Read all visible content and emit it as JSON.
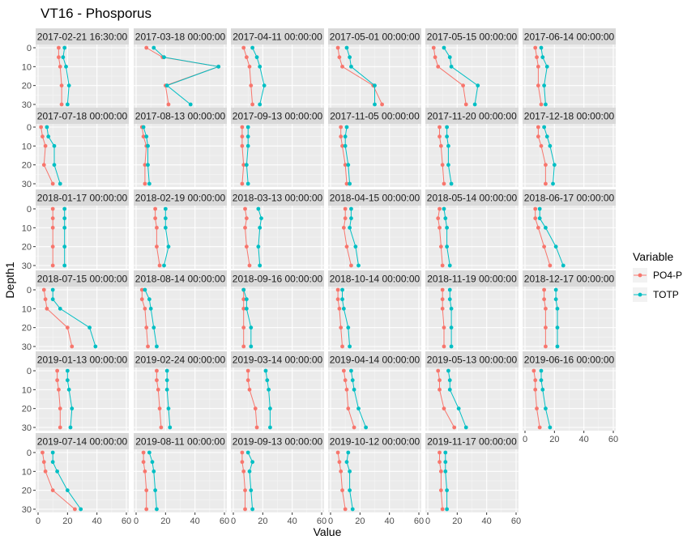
{
  "chart_data": {
    "type": "line",
    "title": "VT16  -  Phosporus",
    "xlabel": "Value",
    "ylabel": "Depth1",
    "xlim": [
      0,
      60
    ],
    "ylim": [
      0,
      30
    ],
    "y_reversed": true,
    "x_ticks": [
      "0",
      "20",
      "40",
      "60"
    ],
    "y_ticks": [
      "0",
      "10",
      "20",
      "30"
    ],
    "grid": true,
    "legend": {
      "title": "Variable",
      "position": "right"
    },
    "series": [
      {
        "name": "PO4-P",
        "color": "#F8766D"
      },
      {
        "name": "TOTP",
        "color": "#00BFC4"
      }
    ],
    "depths": [
      0,
      5,
      10,
      20,
      30
    ],
    "panels": [
      {
        "label": "2017-02-21 16:30:00",
        "po4p": [
          14,
          14,
          15,
          16,
          16
        ],
        "totp": [
          18,
          17,
          19,
          21,
          20
        ]
      },
      {
        "label": "2017-03-18 00:00:00",
        "po4p": [
          7,
          18,
          56,
          20,
          22
        ],
        "totp": [
          12,
          19,
          56,
          21,
          37
        ]
      },
      {
        "label": "2017-04-11 00:00:00",
        "po4p": [
          7,
          9,
          11,
          12,
          13
        ],
        "totp": [
          13,
          16,
          18,
          21,
          18
        ]
      },
      {
        "label": "2017-05-01 00:00:00",
        "po4p": [
          5,
          6,
          8,
          29,
          35
        ],
        "totp": [
          11,
          13,
          14,
          30,
          30
        ]
      },
      {
        "label": "2017-05-15 00:00:00",
        "po4p": [
          4,
          5,
          7,
          24,
          26
        ],
        "totp": [
          11,
          15,
          16,
          34,
          32
        ]
      },
      {
        "label": "2017-06-14 00:00:00",
        "po4p": [
          7,
          8,
          9,
          9,
          11
        ],
        "totp": [
          11,
          12,
          15,
          13,
          14
        ]
      },
      {
        "label": "2017-07-18 00:00:00",
        "po4p": [
          2,
          3,
          5,
          4,
          10
        ],
        "totp": [
          6,
          7,
          11,
          11,
          15
        ]
      },
      {
        "label": "2017-08-13 00:00:00",
        "po4p": [
          4,
          5,
          7,
          6,
          6
        ],
        "totp": [
          5,
          7,
          8,
          8,
          9
        ]
      },
      {
        "label": "2017-09-13 00:00:00",
        "po4p": [
          6,
          6,
          6,
          7,
          6
        ],
        "totp": [
          10,
          10,
          10,
          9,
          10
        ]
      },
      {
        "label": "2017-11-05 00:00:00",
        "po4p": [
          7,
          7,
          8,
          10,
          11
        ],
        "totp": [
          11,
          10,
          10,
          12,
          13
        ]
      },
      {
        "label": "2017-11-20 00:00:00",
        "po4p": [
          8,
          8,
          9,
          10,
          11
        ],
        "totp": [
          13,
          13,
          14,
          14,
          16
        ]
      },
      {
        "label": "2017-12-18 00:00:00",
        "po4p": [
          9,
          9,
          11,
          14,
          14
        ],
        "totp": [
          13,
          15,
          17,
          20,
          19
        ]
      },
      {
        "label": "2018-01-17 00:00:00",
        "po4p": [
          10,
          10,
          10,
          10,
          10
        ],
        "totp": [
          18,
          18,
          18,
          18,
          18
        ]
      },
      {
        "label": "2018-02-19 00:00:00",
        "po4p": [
          13,
          13,
          14,
          14,
          16
        ],
        "totp": [
          20,
          20,
          20,
          22,
          19
        ]
      },
      {
        "label": "2018-03-13 00:00:00",
        "po4p": [
          8,
          9,
          8,
          9,
          11
        ],
        "totp": [
          17,
          19,
          18,
          17,
          18
        ]
      },
      {
        "label": "2018-04-15 00:00:00",
        "po4p": [
          10,
          10,
          9,
          11,
          14
        ],
        "totp": [
          14,
          14,
          13,
          17,
          19
        ]
      },
      {
        "label": "2018-05-14 00:00:00",
        "po4p": [
          8,
          7,
          8,
          9,
          10
        ],
        "totp": [
          11,
          12,
          13,
          13,
          15
        ]
      },
      {
        "label": "2018-06-17 00:00:00",
        "po4p": [
          7,
          7,
          9,
          13,
          17
        ],
        "totp": [
          10,
          10,
          14,
          21,
          26
        ]
      },
      {
        "label": "2018-07-15 00:00:00",
        "po4p": [
          4,
          5,
          6,
          20,
          23
        ],
        "totp": [
          10,
          10,
          15,
          35,
          39
        ]
      },
      {
        "label": "2018-08-14 00:00:00",
        "po4p": [
          4,
          4,
          6,
          7,
          8
        ],
        "totp": [
          6,
          9,
          10,
          12,
          14
        ]
      },
      {
        "label": "2018-09-16 00:00:00",
        "po4p": [
          7,
          7,
          7,
          7,
          7
        ],
        "totp": [
          7,
          9,
          9,
          12,
          12
        ]
      },
      {
        "label": "2018-10-14 00:00:00",
        "po4p": [
          5,
          5,
          6,
          7,
          8
        ],
        "totp": [
          8,
          8,
          9,
          12,
          13
        ]
      },
      {
        "label": "2018-11-19 00:00:00",
        "po4p": [
          10,
          10,
          10,
          11,
          11
        ],
        "totp": [
          15,
          15,
          16,
          16,
          16
        ]
      },
      {
        "label": "2018-12-17 00:00:00",
        "po4p": [
          13,
          13,
          14,
          14,
          14
        ],
        "totp": [
          21,
          21,
          22,
          22,
          22
        ]
      },
      {
        "label": "2019-01-13 00:00:00",
        "po4p": [
          13,
          13,
          14,
          15,
          15
        ],
        "totp": [
          20,
          20,
          21,
          23,
          22
        ]
      },
      {
        "label": "2019-02-24 00:00:00",
        "po4p": [
          14,
          14,
          15,
          16,
          17
        ],
        "totp": [
          21,
          21,
          21,
          22,
          23
        ]
      },
      {
        "label": "2019-03-14 00:00:00",
        "po4p": [
          10,
          10,
          11,
          15,
          16
        ],
        "totp": [
          22,
          23,
          24,
          25,
          25
        ]
      },
      {
        "label": "2019-04-14 00:00:00",
        "po4p": [
          9,
          10,
          11,
          12,
          16
        ],
        "totp": [
          14,
          15,
          16,
          19,
          24
        ]
      },
      {
        "label": "2019-05-13 00:00:00",
        "po4p": [
          7,
          8,
          8,
          11,
          18
        ],
        "totp": [
          14,
          15,
          15,
          21,
          26
        ]
      },
      {
        "label": "2019-06-16 00:00:00",
        "po4p": [
          6,
          7,
          7,
          8,
          10
        ],
        "totp": [
          11,
          11,
          12,
          14,
          17
        ]
      },
      {
        "label": "2019-07-14 00:00:00",
        "po4p": [
          3,
          4,
          5,
          10,
          25
        ],
        "totp": [
          10,
          10,
          13,
          20,
          29
        ]
      },
      {
        "label": "2019-08-11 00:00:00",
        "po4p": [
          5,
          5,
          6,
          7,
          7
        ],
        "totp": [
          9,
          11,
          12,
          13,
          14
        ]
      },
      {
        "label": "2019-09-13 00:00:00",
        "po4p": [
          6,
          6,
          7,
          8,
          8
        ],
        "totp": [
          10,
          13,
          11,
          12,
          13
        ]
      },
      {
        "label": "2019-10-12 00:00:00",
        "po4p": [
          5,
          6,
          7,
          8,
          10
        ],
        "totp": [
          12,
          11,
          13,
          13,
          15
        ]
      },
      {
        "label": "2019-11-17 00:00:00",
        "po4p": [
          8,
          8,
          9,
          9,
          10
        ],
        "totp": [
          12,
          12,
          12,
          13,
          13
        ]
      }
    ]
  }
}
